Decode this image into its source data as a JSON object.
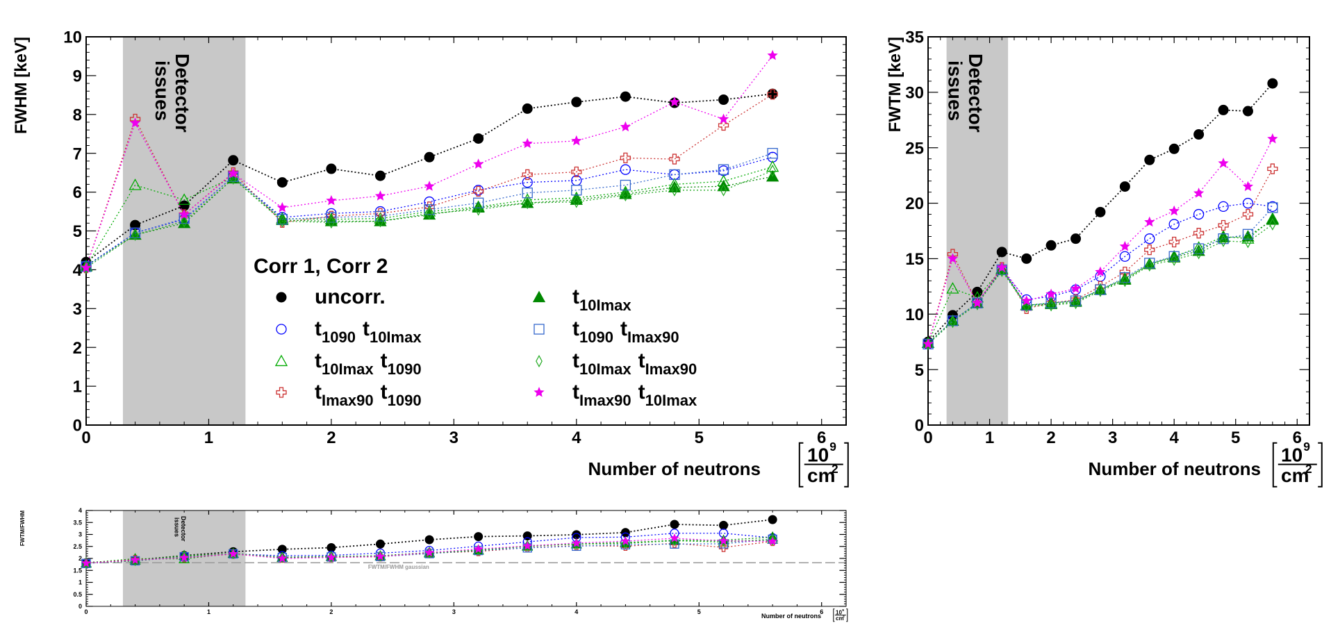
{
  "chart_data": [
    {
      "id": "fwhm",
      "type": "scatter",
      "ylabel": "FWHM [keV]",
      "xlabel": "Number of neutrons",
      "unit_num": "10",
      "unit_exp": "9",
      "unit_den": "cm",
      "unit_den_exp": "2",
      "xlim": [
        0,
        6.2
      ],
      "ylim": [
        0,
        10
      ],
      "xticks": [
        "0",
        "1",
        "2",
        "3",
        "4",
        "5",
        "6"
      ],
      "yticks": [
        "0",
        "1",
        "2",
        "3",
        "4",
        "5",
        "6",
        "7",
        "8",
        "9",
        "10"
      ],
      "shaded_region": {
        "x": [
          0.3,
          1.3
        ],
        "label_line1": "Detector",
        "label_line2": "issues"
      },
      "legend": {
        "title": "Corr 1, Corr 2",
        "placement": "middle"
      },
      "x": [
        0,
        0.4,
        0.8,
        1.2,
        1.6,
        2.0,
        2.4,
        2.8,
        3.2,
        3.6,
        4.0,
        4.4,
        4.8,
        5.2,
        5.6
      ],
      "series": [
        {
          "name": "uncorr.",
          "color": "#000000",
          "marker": "filled-circle",
          "values": [
            4.2,
            5.15,
            5.65,
            6.82,
            6.25,
            6.6,
            6.42,
            6.9,
            7.38,
            8.15,
            8.32,
            8.46,
            8.3,
            8.38,
            8.53
          ]
        },
        {
          "name": "t1090 t10Imax",
          "color": "#0000ff",
          "marker": "open-circle",
          "values": [
            4.1,
            4.95,
            5.3,
            6.4,
            5.35,
            5.45,
            5.5,
            5.75,
            6.05,
            6.25,
            6.3,
            6.58,
            6.45,
            6.55,
            6.9
          ]
        },
        {
          "name": "t10Imax t1090",
          "color": "#00aa00",
          "marker": "open-triangle",
          "values": [
            4.08,
            6.18,
            5.8,
            6.38,
            5.32,
            5.3,
            5.32,
            5.5,
            5.62,
            5.8,
            5.85,
            6.0,
            6.2,
            6.28,
            6.65
          ]
        },
        {
          "name": "tImax90 t1090",
          "color": "#cc3333",
          "marker": "open-cross",
          "values": [
            4.05,
            7.88,
            5.42,
            6.5,
            5.22,
            5.38,
            5.45,
            5.62,
            6.02,
            6.45,
            6.52,
            6.88,
            6.85,
            7.72,
            8.52
          ]
        },
        {
          "name": "t10Imax",
          "color": "#008800",
          "marker": "filled-triangle",
          "values": [
            4.1,
            4.9,
            5.2,
            6.35,
            5.28,
            5.25,
            5.25,
            5.42,
            5.6,
            5.72,
            5.8,
            5.95,
            6.12,
            6.15,
            6.4
          ]
        },
        {
          "name": "t1090 tImax90",
          "color": "#3366cc",
          "marker": "open-square",
          "values": [
            4.08,
            4.95,
            5.32,
            6.4,
            5.3,
            5.35,
            5.38,
            5.55,
            5.72,
            5.98,
            6.05,
            6.18,
            6.45,
            6.58,
            7.0
          ]
        },
        {
          "name": "t10Imax tImax90",
          "color": "#22aa22",
          "marker": "open-diamond",
          "values": [
            4.05,
            4.9,
            5.25,
            6.35,
            5.25,
            5.22,
            5.25,
            5.45,
            5.55,
            5.72,
            5.75,
            5.92,
            6.05,
            6.05,
            6.55
          ]
        },
        {
          "name": "tImax90 t10Imax",
          "color": "#ee00ee",
          "marker": "star",
          "values": [
            4.05,
            7.78,
            5.42,
            6.48,
            5.6,
            5.78,
            5.9,
            6.15,
            6.72,
            7.25,
            7.32,
            7.68,
            8.32,
            7.88,
            9.52
          ]
        }
      ]
    },
    {
      "id": "fwtm",
      "type": "scatter",
      "ylabel": "FWTM [keV]",
      "xlabel": "Number of neutrons",
      "unit_num": "10",
      "unit_exp": "9",
      "unit_den": "cm",
      "unit_den_exp": "2",
      "xlim": [
        0,
        6.2
      ],
      "ylim": [
        0,
        35
      ],
      "xticks": [
        "0",
        "1",
        "2",
        "3",
        "4",
        "5",
        "6"
      ],
      "yticks": [
        "0",
        "5",
        "10",
        "15",
        "20",
        "25",
        "30",
        "35"
      ],
      "shaded_region": {
        "x": [
          0.3,
          1.3
        ],
        "label_line1": "Detector",
        "label_line2": "issues"
      },
      "x": [
        0,
        0.4,
        0.8,
        1.2,
        1.6,
        2.0,
        2.4,
        2.8,
        3.2,
        3.6,
        4.0,
        4.4,
        4.8,
        5.2,
        5.6
      ],
      "series": [
        {
          "name": "uncorr.",
          "color": "#000000",
          "marker": "filled-circle",
          "values": [
            7.5,
            9.9,
            12.0,
            15.6,
            15.0,
            16.2,
            16.8,
            19.2,
            21.5,
            23.9,
            24.9,
            26.2,
            28.4,
            28.3,
            30.8
          ]
        },
        {
          "name": "t1090 t10Imax",
          "color": "#0000ff",
          "marker": "open-circle",
          "values": [
            7.3,
            9.4,
            11.0,
            14.0,
            11.3,
            11.6,
            12.2,
            13.4,
            15.2,
            16.8,
            18.1,
            19.0,
            19.7,
            20.0,
            19.7
          ]
        },
        {
          "name": "t10Imax t1090",
          "color": "#00aa00",
          "marker": "open-triangle",
          "values": [
            7.4,
            12.3,
            11.5,
            14.1,
            10.8,
            11.0,
            11.2,
            12.2,
            13.2,
            14.5,
            15.2,
            16.0,
            17.0,
            16.8,
            18.6
          ]
        },
        {
          "name": "tImax90 t1090",
          "color": "#cc3333",
          "marker": "open-cross",
          "values": [
            7.3,
            15.4,
            11.0,
            14.2,
            10.5,
            11.0,
            11.3,
            12.5,
            13.8,
            15.8,
            16.5,
            17.3,
            18.0,
            19.0,
            23.1
          ]
        },
        {
          "name": "t10Imax",
          "color": "#008800",
          "marker": "filled-triangle",
          "values": [
            7.4,
            9.4,
            11.0,
            14.0,
            10.8,
            10.9,
            11.1,
            12.2,
            13.1,
            14.5,
            15.1,
            15.7,
            16.9,
            17.0,
            18.5
          ]
        },
        {
          "name": "t1090 tImax90",
          "color": "#3366cc",
          "marker": "open-square",
          "values": [
            7.3,
            9.4,
            11.0,
            14.0,
            10.8,
            11.0,
            11.2,
            12.2,
            13.3,
            14.6,
            15.2,
            15.9,
            16.8,
            17.2,
            19.6
          ]
        },
        {
          "name": "t10Imax tImax90",
          "color": "#22aa22",
          "marker": "open-diamond",
          "values": [
            7.3,
            9.3,
            10.9,
            13.9,
            10.7,
            10.8,
            11.0,
            12.1,
            13.0,
            14.4,
            14.9,
            15.5,
            16.6,
            16.5,
            18.1
          ]
        },
        {
          "name": "tImax90 t10Imax",
          "color": "#ee00ee",
          "marker": "star",
          "values": [
            7.3,
            15.0,
            11.0,
            14.2,
            11.2,
            11.8,
            12.3,
            13.8,
            16.1,
            18.3,
            19.3,
            20.9,
            23.6,
            21.5,
            25.8
          ]
        }
      ]
    },
    {
      "id": "ratio",
      "type": "scatter",
      "ylabel": "FWTM/FWHM",
      "xlabel": "Number of neutrons",
      "unit_num": "10",
      "unit_exp": "9",
      "unit_den": "cm",
      "unit_den_exp": "2",
      "xlim": [
        0,
        6.2
      ],
      "ylim": [
        0,
        4
      ],
      "xticks": [
        "0",
        "1",
        "2",
        "3",
        "4",
        "5",
        "6"
      ],
      "yticks": [
        "0",
        "0.5",
        "1",
        "1.5",
        "2",
        "2.5",
        "3",
        "3.5",
        "4"
      ],
      "shaded_region": {
        "x": [
          0.3,
          1.3
        ],
        "label_line1": "Detector",
        "label_line2": "issues"
      },
      "reference_line": {
        "y": 1.82,
        "label": "FWTM/FWHM gaussian"
      },
      "x": [
        0,
        0.4,
        0.8,
        1.2,
        1.6,
        2.0,
        2.4,
        2.8,
        3.2,
        3.6,
        4.0,
        4.4,
        4.8,
        5.2,
        5.6
      ],
      "series": [
        {
          "name": "uncorr.",
          "color": "#000000",
          "marker": "filled-circle",
          "values": [
            1.82,
            1.93,
            2.12,
            2.28,
            2.38,
            2.45,
            2.6,
            2.78,
            2.91,
            2.94,
            2.99,
            3.08,
            3.42,
            3.38,
            3.62
          ]
        },
        {
          "name": "t1090 t10Imax",
          "color": "#0000ff",
          "marker": "open-circle",
          "values": [
            1.8,
            1.9,
            2.07,
            2.19,
            2.11,
            2.13,
            2.22,
            2.33,
            2.51,
            2.69,
            2.87,
            2.89,
            3.05,
            3.05,
            2.86
          ]
        },
        {
          "name": "t10Imax t1090",
          "color": "#00aa00",
          "marker": "open-triangle",
          "values": [
            1.81,
            1.99,
            1.98,
            2.21,
            2.03,
            2.08,
            2.1,
            2.22,
            2.35,
            2.5,
            2.6,
            2.67,
            2.74,
            2.68,
            2.8
          ]
        },
        {
          "name": "tImax90 t1090",
          "color": "#cc3333",
          "marker": "open-cross",
          "values": [
            1.8,
            1.95,
            2.03,
            2.18,
            2.01,
            2.04,
            2.07,
            2.22,
            2.29,
            2.45,
            2.53,
            2.51,
            2.63,
            2.46,
            2.71
          ]
        },
        {
          "name": "t10Imax",
          "color": "#008800",
          "marker": "filled-triangle",
          "values": [
            1.8,
            1.92,
            2.12,
            2.2,
            2.05,
            2.08,
            2.11,
            2.25,
            2.34,
            2.53,
            2.6,
            2.64,
            2.76,
            2.76,
            2.89
          ]
        },
        {
          "name": "t1090 tImax90",
          "color": "#3366cc",
          "marker": "open-square",
          "values": [
            1.79,
            1.9,
            2.07,
            2.19,
            2.04,
            2.06,
            2.08,
            2.2,
            2.33,
            2.44,
            2.51,
            2.57,
            2.6,
            2.61,
            2.8
          ]
        },
        {
          "name": "t10Imax tImax90",
          "color": "#22aa22",
          "marker": "open-diamond",
          "values": [
            1.8,
            1.9,
            2.08,
            2.19,
            2.04,
            2.07,
            2.1,
            2.22,
            2.34,
            2.52,
            2.59,
            2.62,
            2.74,
            2.73,
            2.76
          ]
        },
        {
          "name": "tImax90 t10Imax",
          "color": "#ee00ee",
          "marker": "star",
          "values": [
            1.8,
            1.93,
            2.03,
            2.19,
            2.0,
            2.04,
            2.08,
            2.24,
            2.39,
            2.52,
            2.64,
            2.72,
            2.84,
            2.73,
            2.71
          ]
        }
      ]
    }
  ],
  "legend_entries": [
    {
      "label": "uncorr.",
      "sub1": "",
      "mid": "",
      "sub2": "",
      "series": 0
    },
    {
      "label": "t",
      "sub1": "1090",
      "mid": "t",
      "sub2": "10Imax",
      "series": 1
    },
    {
      "label": "t",
      "sub1": "10Imax",
      "mid": "t",
      "sub2": "1090",
      "series": 2
    },
    {
      "label": "t",
      "sub1": "Imax90",
      "mid": "t",
      "sub2": "1090",
      "series": 3
    },
    {
      "label": "t",
      "sub1": "10Imax",
      "mid": "",
      "sub2": "",
      "series": 4
    },
    {
      "label": "t",
      "sub1": "1090",
      "mid": "t",
      "sub2": "Imax90",
      "series": 5
    },
    {
      "label": "t",
      "sub1": "10Imax",
      "mid": "t",
      "sub2": "Imax90",
      "series": 6
    },
    {
      "label": "t",
      "sub1": "Imax90",
      "mid": "t",
      "sub2": "10Imax",
      "series": 7
    }
  ]
}
